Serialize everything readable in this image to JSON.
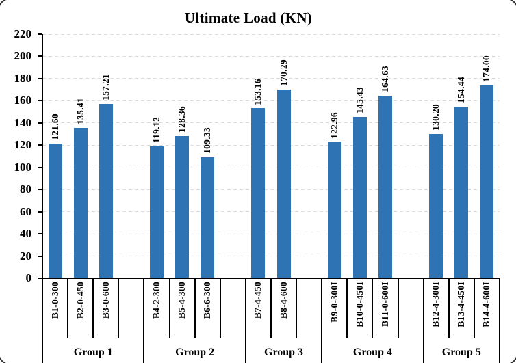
{
  "chart_data": {
    "type": "bar",
    "title": "Ultimate Load (KN)",
    "xlabel": "",
    "ylabel": "",
    "ylim": [
      0,
      220
    ],
    "ytick_step": 20,
    "ytick_labels": [
      "0",
      "20",
      "40",
      "60",
      "80",
      "100",
      "120",
      "140",
      "160",
      "180",
      "200",
      "220"
    ],
    "grid": "dashed-horizontal",
    "legend": "none",
    "bar_color": "#2E74B5",
    "gridline_color": "#DCDCDC",
    "axis_color": "#000000",
    "groups": [
      {
        "label": "Group 1",
        "trailing_empty_slot": true,
        "bars": [
          {
            "category": "B1-0-300",
            "value": 121.6,
            "value_label": "121.60"
          },
          {
            "category": "B2-0-450",
            "value": 135.41,
            "value_label": "135.41"
          },
          {
            "category": "B3-0-600",
            "value": 157.21,
            "value_label": "157.21"
          }
        ]
      },
      {
        "label": "Group 2",
        "trailing_empty_slot": true,
        "bars": [
          {
            "category": "B4-2-300",
            "value": 119.12,
            "value_label": "119.12"
          },
          {
            "category": "B5-4-300",
            "value": 128.36,
            "value_label": "128.36"
          },
          {
            "category": "B6-6-300",
            "value": 109.33,
            "value_label": "109.33"
          }
        ]
      },
      {
        "label": "Group 3",
        "trailing_empty_slot": true,
        "bars": [
          {
            "category": "B7-4-450",
            "value": 153.16,
            "value_label": "153.16"
          },
          {
            "category": "B8-4-600",
            "value": 170.29,
            "value_label": "170.29"
          }
        ]
      },
      {
        "label": "Group 4",
        "trailing_empty_slot": true,
        "bars": [
          {
            "category": "B9-0-300I",
            "value": 122.96,
            "value_label": "122.96"
          },
          {
            "category": "B10-0-450I",
            "value": 145.43,
            "value_label": "145.43"
          },
          {
            "category": "B11-0-600I",
            "value": 164.63,
            "value_label": "164.63"
          }
        ]
      },
      {
        "label": "Group 5",
        "trailing_empty_slot": false,
        "bars": [
          {
            "category": "B12-4-300I",
            "value": 130.2,
            "value_label": "130.20"
          },
          {
            "category": "B13-4-450I",
            "value": 154.44,
            "value_label": "154.44"
          },
          {
            "category": "B14-4-600I",
            "value": 174.0,
            "value_label": "174.00"
          }
        ]
      }
    ]
  }
}
